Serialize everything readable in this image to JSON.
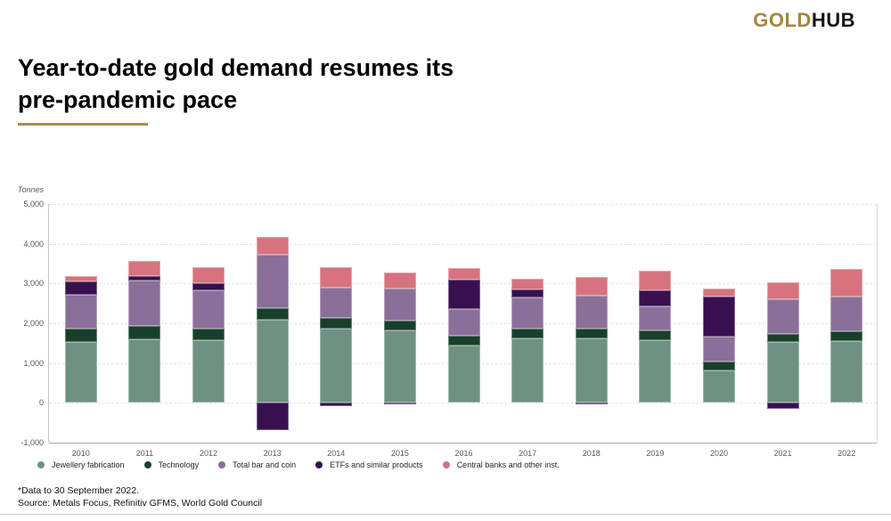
{
  "logo": {
    "gold": "GOLD",
    "hub": "HUB"
  },
  "title": {
    "line1": "Year-to-date gold demand resumes its",
    "line2": "pre-pandemic pace"
  },
  "chart_data": {
    "type": "bar",
    "subtype": "stacked-column",
    "unit_label": "Tonnes",
    "categories": [
      "2010",
      "2011",
      "2012",
      "2013",
      "2014",
      "2015",
      "2016",
      "2017",
      "2018",
      "2019",
      "2020",
      "2021",
      "2022"
    ],
    "series": [
      {
        "name": "Jewellery fabrication",
        "color": "#6f9181",
        "values": [
          1520,
          1590,
          1570,
          2100,
          1865,
          1820,
          1445,
          1630,
          1630,
          1570,
          810,
          1520,
          1550
        ]
      },
      {
        "name": "Technology",
        "color": "#17402b",
        "values": [
          335,
          345,
          285,
          280,
          270,
          255,
          250,
          225,
          245,
          245,
          225,
          215,
          250
        ]
      },
      {
        "name": "Total bar and coin",
        "color": "#8a7099",
        "values": [
          870,
          1145,
          965,
          1340,
          770,
          805,
          655,
          805,
          810,
          620,
          620,
          865,
          880
        ]
      },
      {
        "name": "ETFs and similar products",
        "color": "#381050",
        "values": [
          320,
          105,
          195,
          -680,
          -90,
          -45,
          745,
          185,
          -35,
          385,
          1020,
          -150,
          0
        ]
      },
      {
        "name": "Central banks and other inst.",
        "color": "#d6737f",
        "values": [
          150,
          375,
          400,
          460,
          495,
          400,
          300,
          285,
          470,
          500,
          195,
          420,
          685
        ]
      }
    ],
    "ylim": [
      -1000,
      5000
    ],
    "yticks_values": [
      5000,
      4000,
      3000,
      2000,
      1000,
      0,
      -1000
    ],
    "yticks_labels": [
      "5,000",
      "4,000",
      "3,000",
      "2,000",
      "1,000",
      "0",
      "-1,000"
    ],
    "grid": true,
    "legend_position": "bottom"
  },
  "footnote": "*Data to 30 September 2022.",
  "source": "Source: Metals Focus, Refinitiv GFMS, World Gold Council"
}
